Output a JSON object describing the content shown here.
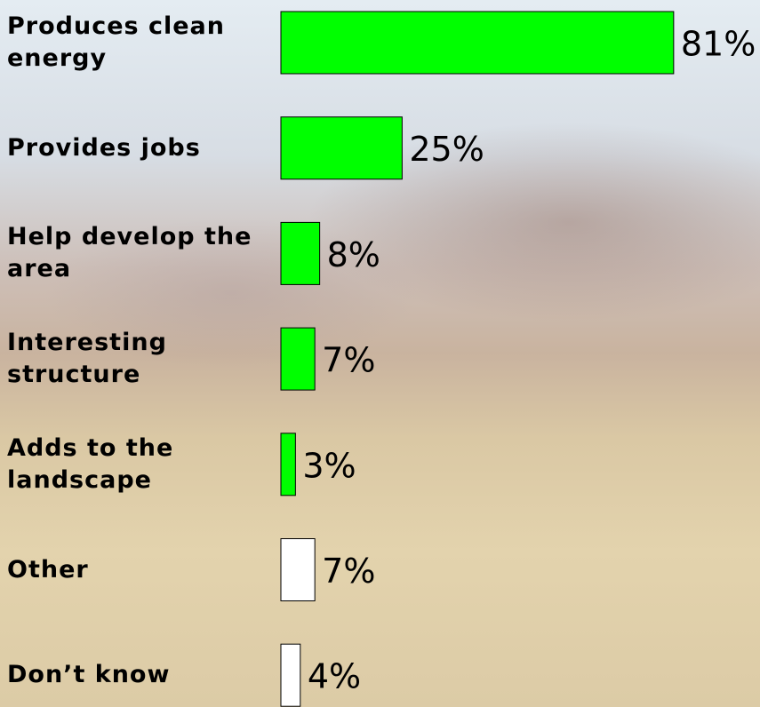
{
  "chart_data": {
    "type": "bar",
    "categories": [
      "Produces clean energy",
      "Provides jobs",
      "Help develop the area",
      "Interesting structure",
      "Adds to the landscape",
      "Other",
      "Don’t know"
    ],
    "values": [
      81,
      25,
      8,
      7,
      3,
      7,
      4
    ],
    "value_labels": [
      "81%",
      "25%",
      "8%",
      "7%",
      "3%",
      "7%",
      "4%"
    ],
    "colors": [
      "#00ff00",
      "#00ff00",
      "#00ff00",
      "#00ff00",
      "#00ff00",
      "#ffffff",
      "#ffffff"
    ]
  }
}
